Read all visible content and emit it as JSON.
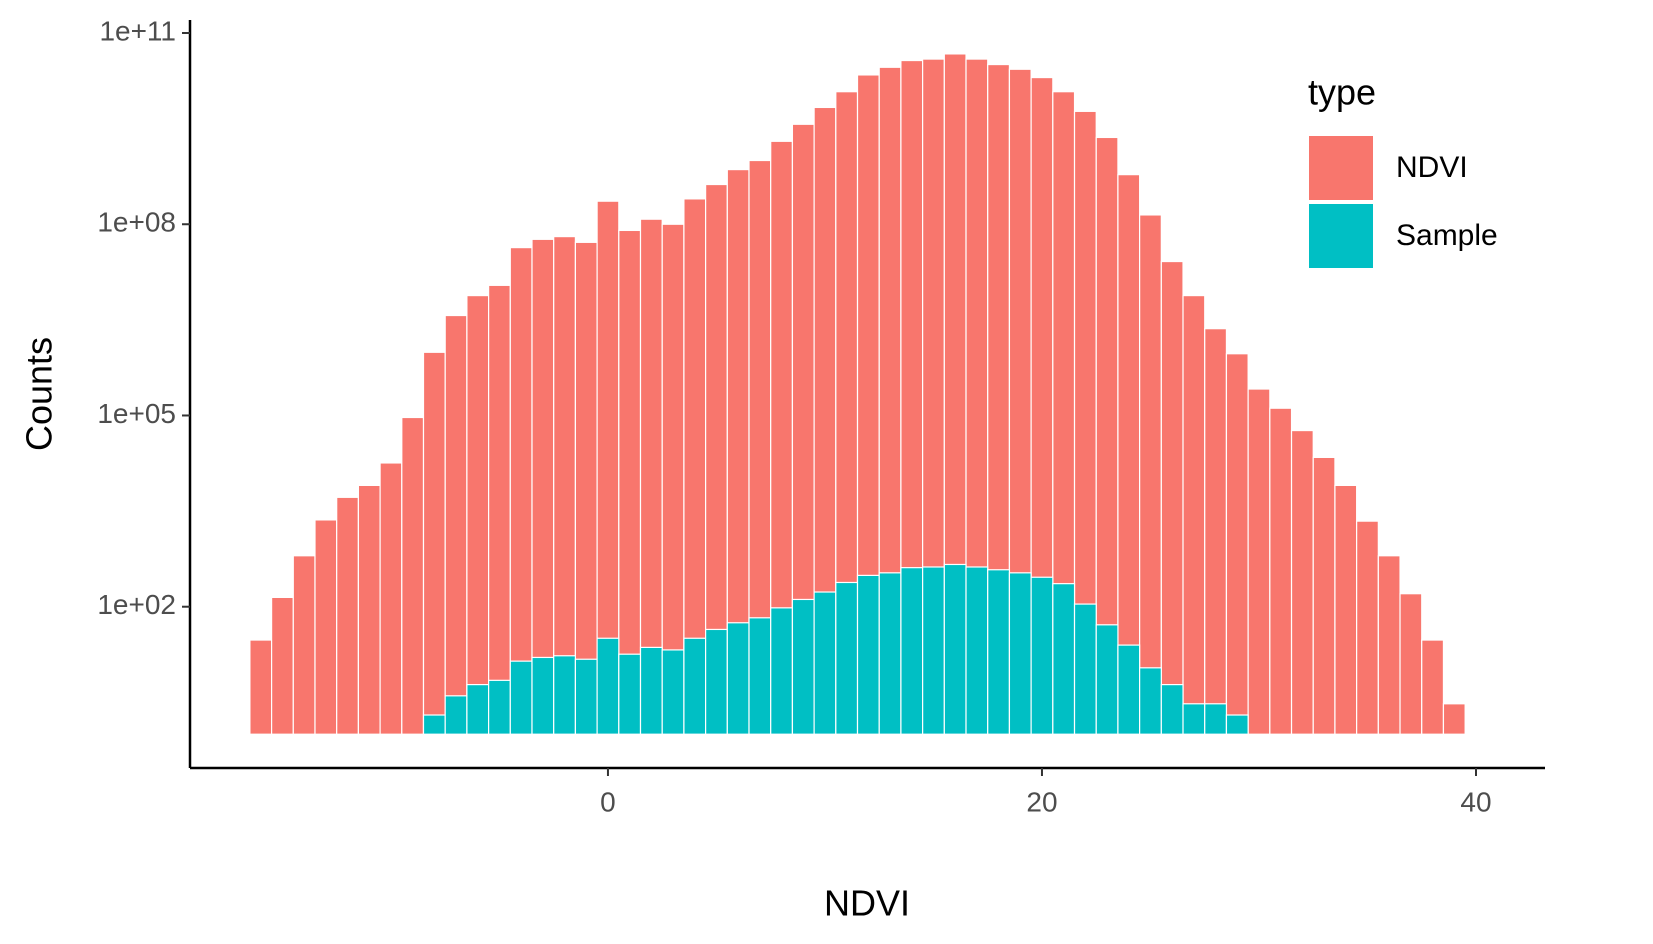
{
  "chart_data": {
    "type": "histogram",
    "x_label": "NDVI",
    "y_label": "Counts",
    "legend_title": "type",
    "legend": "right",
    "log_y": true,
    "grid": false,
    "bins": [
      -16.5,
      -15.5,
      -14.5,
      -13.5,
      -12.5,
      -11.5,
      -10.5,
      -9.5,
      -8.5,
      -7.5,
      -6.5,
      -5.5,
      -4.5,
      -3.5,
      -2.5,
      -1.5,
      -0.5,
      0.5,
      1.5,
      2.5,
      3.5,
      4.5,
      5.5,
      6.5,
      7.5,
      8.5,
      9.5,
      10.5,
      11.5,
      12.5,
      13.5,
      14.5,
      15.5,
      16.5,
      17.5,
      18.5,
      19.5,
      20.5,
      21.5,
      22.5,
      23.5,
      24.5,
      25.5,
      26.5,
      27.5,
      28.5,
      29.5,
      30.5,
      31.5,
      32.5,
      33.5,
      34.5,
      35.5,
      36.5,
      37.5,
      38.5,
      39.5
    ],
    "series": [
      {
        "name": "NDVI",
        "color": "#F8766D",
        "values": [
          30,
          140,
          630,
          2300,
          5200,
          8000,
          18000,
          93000,
          980000,
          3700000,
          7600000,
          11000000,
          43000000,
          58000000,
          64000000,
          52000000,
          230000000,
          80000000,
          120000000,
          100000000,
          250000000,
          420000000,
          720000000,
          1000000000,
          2000000000,
          3700000000,
          6800000000,
          12000000000,
          22000000000,
          29000000000,
          37000000000,
          39000000000,
          47000000000,
          39000000000,
          32000000000,
          27000000000,
          20000000000,
          12000000000,
          5900000000,
          2300000000,
          600000000,
          140000000,
          26000000,
          7600000,
          2300000,
          930000,
          260000,
          130000,
          58000,
          22000,
          8000,
          2200,
          630,
          160,
          30,
          3
        ]
      },
      {
        "name": "Sample",
        "color": "#00BFC4",
        "values": [
          null,
          null,
          null,
          null,
          null,
          null,
          null,
          null,
          2,
          4,
          6,
          7,
          14,
          16,
          17,
          15,
          32,
          18,
          23,
          21,
          32,
          44,
          56,
          67,
          96,
          130,
          170,
          240,
          310,
          340,
          410,
          420,
          460,
          420,
          380,
          340,
          290,
          230,
          110,
          52,
          25,
          11,
          6,
          3,
          3,
          2,
          null,
          null,
          null,
          null,
          null,
          null,
          null,
          null,
          null,
          null
        ]
      }
    ],
    "xlim": [
      -19.26,
      43.18
    ],
    "xticks": [
      0,
      20,
      40
    ],
    "ylim": [
      0.295,
      160000000000
    ],
    "yticks": [
      {
        "value": 100,
        "label": "1e+02"
      },
      {
        "value": 100000,
        "label": "1e+05"
      },
      {
        "value": 100000000,
        "label": "1e+08"
      },
      {
        "value": 100000000000,
        "label": "1e+11"
      }
    ]
  }
}
